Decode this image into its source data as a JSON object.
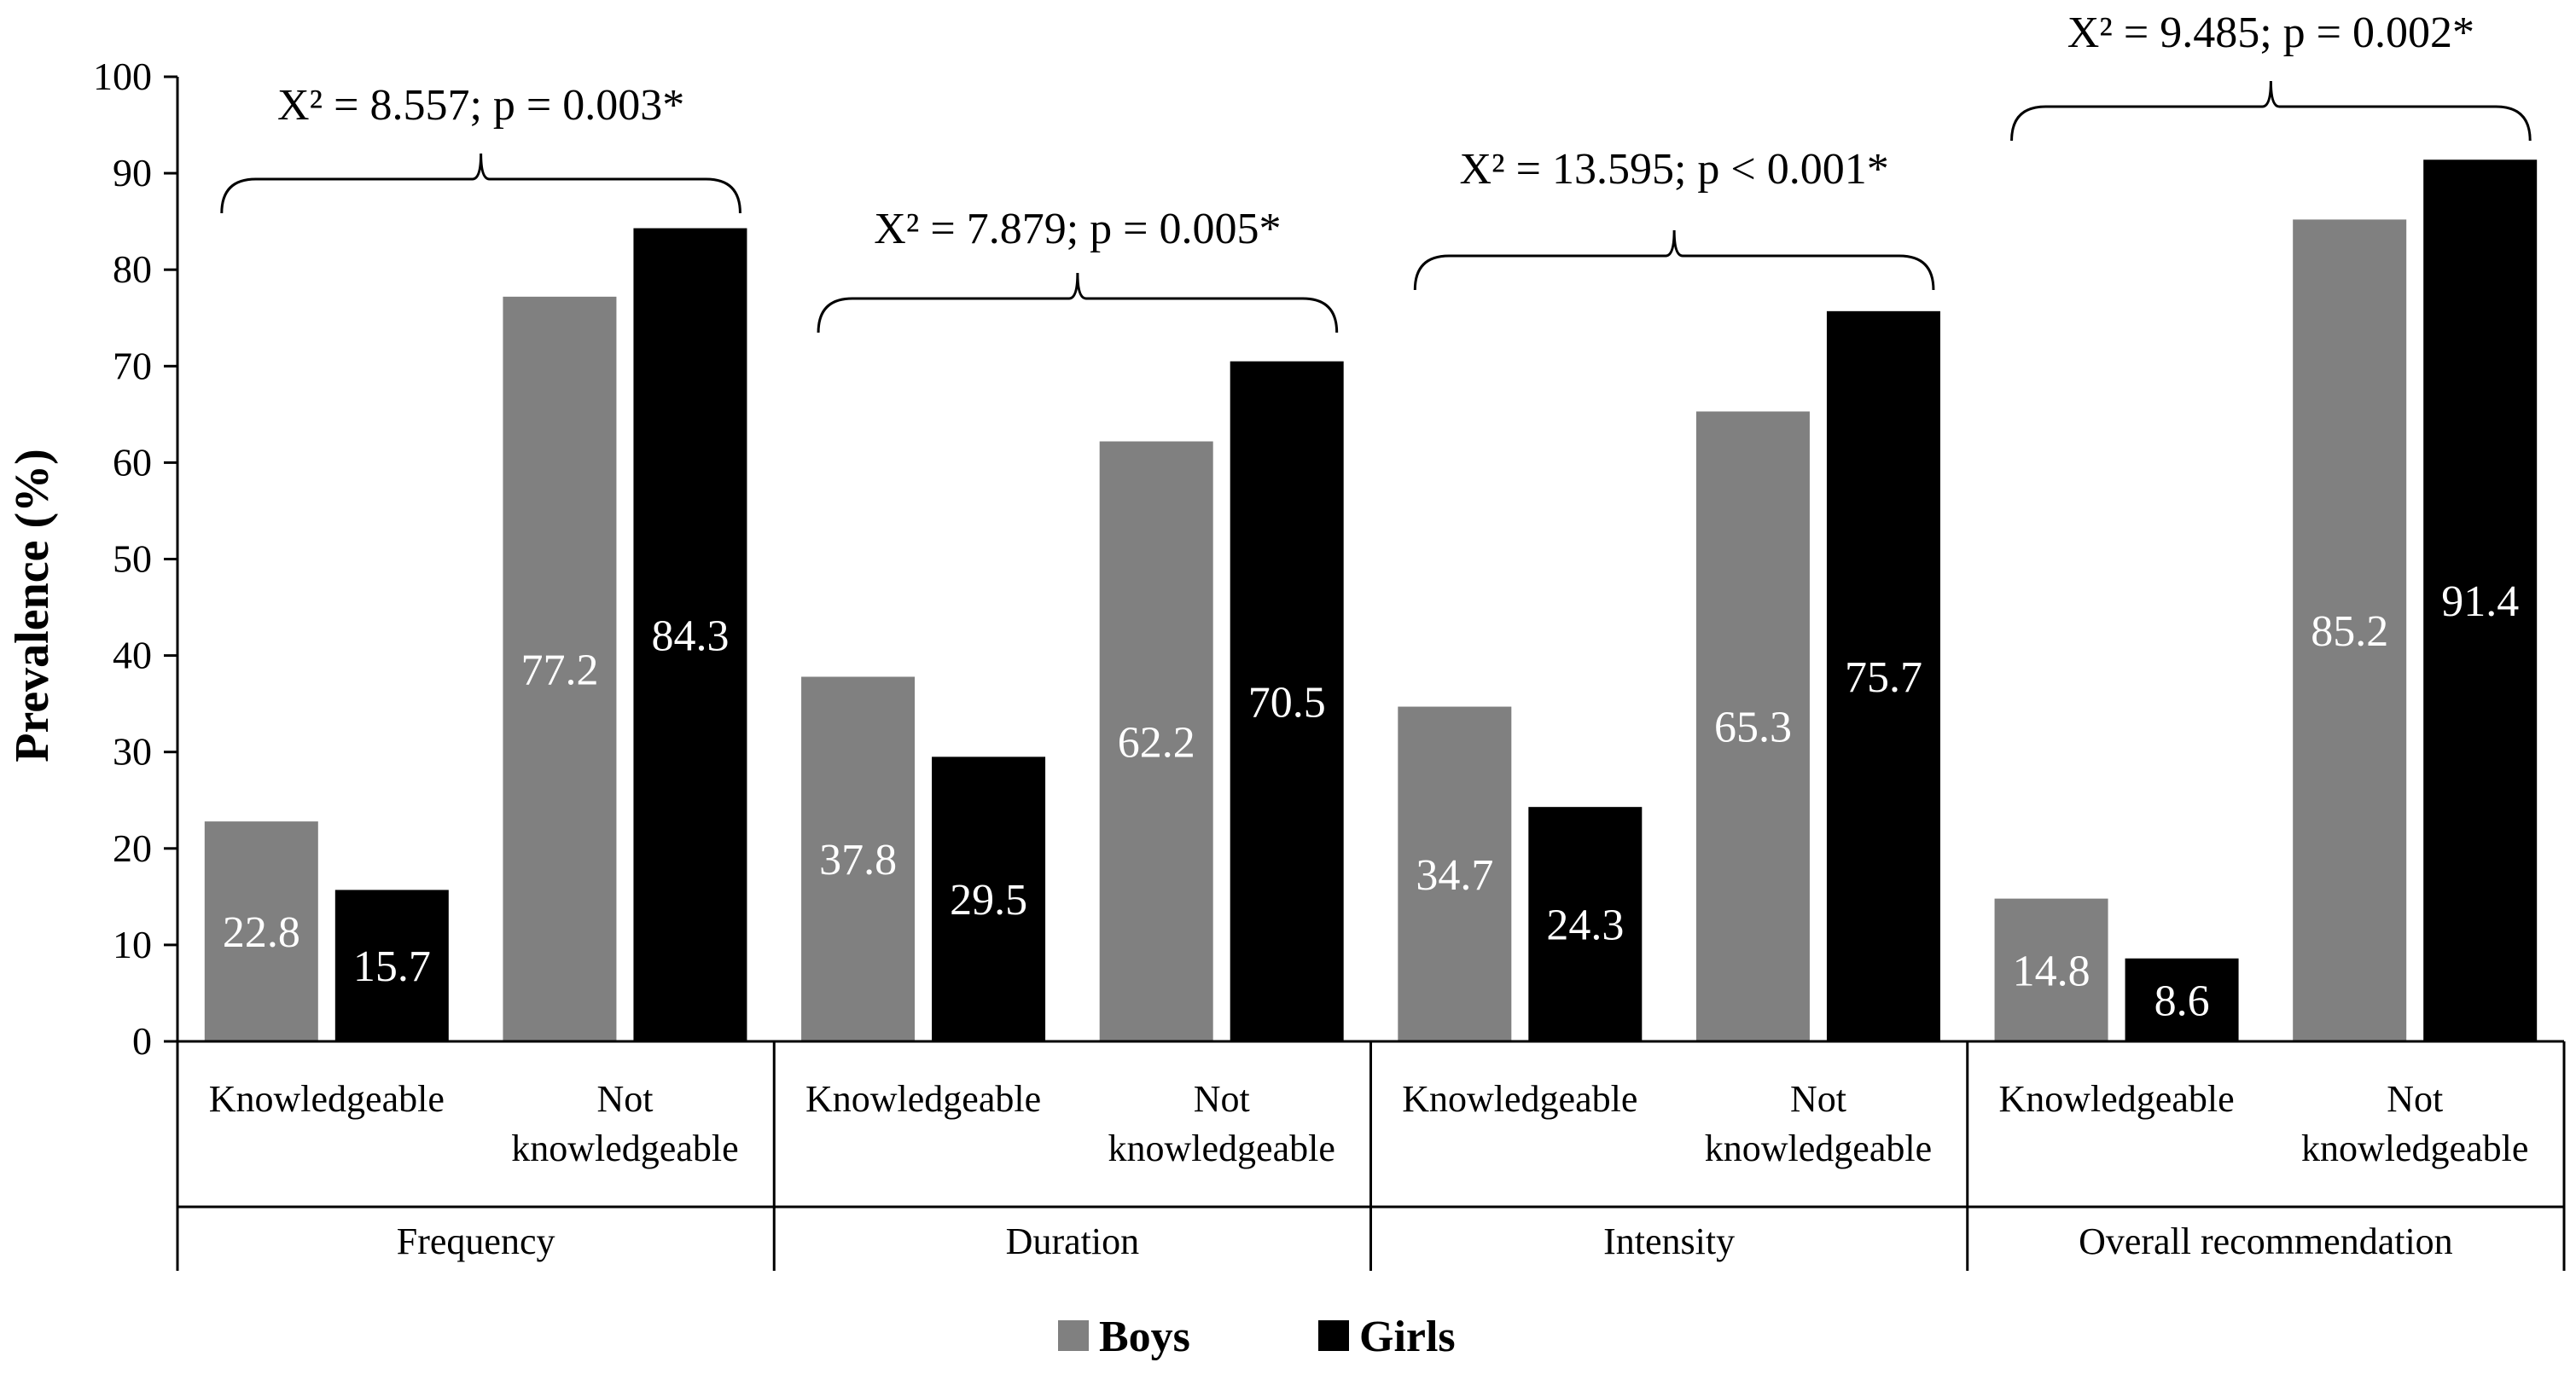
{
  "chart_data": {
    "type": "bar",
    "ylabel": "Prevalence (%)",
    "ylim": [
      0,
      100
    ],
    "yticks": [
      0,
      10,
      20,
      30,
      40,
      50,
      60,
      70,
      80,
      90,
      100
    ],
    "groups": [
      {
        "name": "Frequency",
        "annotation": "X² = 8.557; p = 0.003*",
        "categories": [
          {
            "label_lines": [
              "Knowledgeable"
            ],
            "boys": 22.8,
            "girls": 15.7
          },
          {
            "label_lines": [
              "Not",
              "knowledgeable"
            ],
            "boys": 77.2,
            "girls": 84.3
          }
        ]
      },
      {
        "name": "Duration",
        "annotation": "X² = 7.879; p = 0.005*",
        "categories": [
          {
            "label_lines": [
              "Knowledgeable"
            ],
            "boys": 37.8,
            "girls": 29.5
          },
          {
            "label_lines": [
              "Not",
              "knowledgeable"
            ],
            "boys": 62.2,
            "girls": 70.5
          }
        ]
      },
      {
        "name": "Intensity",
        "annotation": "X² = 13.595; p < 0.001*",
        "categories": [
          {
            "label_lines": [
              "Knowledgeable"
            ],
            "boys": 34.7,
            "girls": 24.3
          },
          {
            "label_lines": [
              "Not",
              "knowledgeable"
            ],
            "boys": 65.3,
            "girls": 75.7
          }
        ]
      },
      {
        "name": "Overall recommendation",
        "annotation": "X² = 9.485; p = 0.002*",
        "categories": [
          {
            "label_lines": [
              "Knowledgeable"
            ],
            "boys": 14.8,
            "girls": 8.6
          },
          {
            "label_lines": [
              "Not",
              "knowledgeable"
            ],
            "boys": 85.2,
            "girls": 91.4
          }
        ]
      }
    ],
    "series": [
      {
        "name": "Boys",
        "key": "boys",
        "color": "#808080"
      },
      {
        "name": "Girls",
        "key": "girls",
        "color": "#000000"
      }
    ],
    "legend_position": "bottom-center",
    "grid": false
  }
}
